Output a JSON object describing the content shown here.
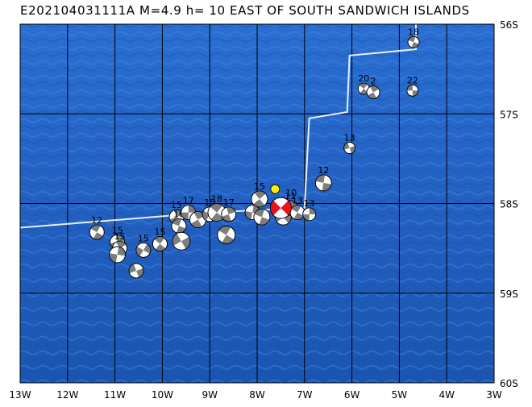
{
  "title": "E202104031111A  M=4.9  h= 10 EAST OF SOUTH SANDWICH ISLANDS",
  "colors": {
    "ocean_dark": "#1a55b0",
    "ocean_mid": "#2a6fd2",
    "ocean_light": "#3c86e4",
    "grid": "#000000",
    "track": "#e8eef5",
    "main_event": "#e8131b",
    "epicenter": "#ffee00",
    "beachball_dark": "#7d7d7d"
  },
  "map": {
    "lon_range": [
      -13,
      -3
    ],
    "lat_range": [
      -60,
      -56
    ],
    "x_ticks": [
      {
        "lon": -13,
        "label": "13W"
      },
      {
        "lon": -12,
        "label": "12W"
      },
      {
        "lon": -11,
        "label": "11W"
      },
      {
        "lon": -10,
        "label": "10W"
      },
      {
        "lon": -9,
        "label": "9W"
      },
      {
        "lon": -8,
        "label": "8W"
      },
      {
        "lon": -7,
        "label": "7W"
      },
      {
        "lon": -6,
        "label": "6W"
      },
      {
        "lon": -5,
        "label": "5W"
      },
      {
        "lon": -4,
        "label": "4W"
      },
      {
        "lon": -3,
        "label": "3W"
      }
    ],
    "y_ticks": [
      {
        "lat": -56,
        "label": "56S"
      },
      {
        "lat": -57,
        "label": "57S"
      },
      {
        "lat": -58,
        "label": "58S"
      },
      {
        "lat": -59,
        "label": "59S"
      },
      {
        "lat": -60,
        "label": "60S"
      }
    ]
  },
  "epicenter": {
    "lon": -7.62,
    "lat": -57.84
  },
  "main_event": {
    "lon": -7.5,
    "lat": -58.05,
    "depth": "10",
    "mech_rot": 135
  },
  "plate_boundary": [
    [
      -13.0,
      -58.27
    ],
    [
      -9.0,
      -58.1
    ],
    [
      -7.0,
      -58.05
    ],
    [
      -6.9,
      -57.05
    ],
    [
      -6.1,
      -56.98
    ],
    [
      -6.05,
      -56.35
    ],
    [
      -4.65,
      -56.28
    ],
    [
      -4.65,
      -55.98
    ]
  ],
  "events": [
    {
      "lon": -4.7,
      "lat": -56.2,
      "depth": "18",
      "size": 7,
      "rot": 20
    },
    {
      "lon": -5.75,
      "lat": -56.72,
      "depth": "20",
      "size": 7,
      "rot": 40
    },
    {
      "lon": -5.55,
      "lat": -56.76,
      "depth": "2",
      "size": 8,
      "rot": 60
    },
    {
      "lon": -4.72,
      "lat": -56.74,
      "depth": "22",
      "size": 7,
      "rot": 0
    },
    {
      "lon": -6.05,
      "lat": -57.38,
      "depth": "13",
      "size": 7,
      "rot": -20
    },
    {
      "lon": -6.6,
      "lat": -57.77,
      "depth": "12",
      "size": 10,
      "rot": 10
    },
    {
      "lon": -11.38,
      "lat": -58.32,
      "depth": "12",
      "size": 9,
      "rot": 30
    },
    {
      "lon": -10.95,
      "lat": -58.43,
      "depth": "15",
      "size": 9,
      "rot": 80
    },
    {
      "lon": -10.9,
      "lat": -58.5,
      "depth": "15",
      "size": 9,
      "rot": 60
    },
    {
      "lon": -10.95,
      "lat": -58.57,
      "depth": "",
      "size": 10,
      "rot": 100
    },
    {
      "lon": -10.4,
      "lat": -58.52,
      "depth": "15",
      "size": 9,
      "rot": 120
    },
    {
      "lon": -10.05,
      "lat": -58.45,
      "depth": "15",
      "size": 9,
      "rot": 40
    },
    {
      "lon": -10.55,
      "lat": -58.75,
      "depth": "",
      "size": 9,
      "rot": 160
    },
    {
      "lon": -9.7,
      "lat": -58.15,
      "depth": "15",
      "size": 9,
      "rot": 70
    },
    {
      "lon": -9.65,
      "lat": -58.25,
      "depth": "10",
      "size": 9,
      "rot": 20
    },
    {
      "lon": -9.45,
      "lat": -58.1,
      "depth": "17",
      "size": 9,
      "rot": 90
    },
    {
      "lon": -9.25,
      "lat": -58.18,
      "depth": "",
      "size": 10,
      "rot": 60
    },
    {
      "lon": -9.0,
      "lat": -58.12,
      "depth": "15",
      "size": 9,
      "rot": 120
    },
    {
      "lon": -8.85,
      "lat": -58.1,
      "depth": "18",
      "size": 11,
      "rot": 40
    },
    {
      "lon": -8.6,
      "lat": -58.12,
      "depth": "17",
      "size": 9,
      "rot": 70
    },
    {
      "lon": -9.6,
      "lat": -58.42,
      "depth": "",
      "size": 11,
      "rot": 150
    },
    {
      "lon": -8.65,
      "lat": -58.35,
      "depth": "",
      "size": 11,
      "rot": 30
    },
    {
      "lon": -7.95,
      "lat": -57.95,
      "depth": "15",
      "size": 10,
      "rot": 50
    },
    {
      "lon": -8.1,
      "lat": -58.1,
      "depth": "",
      "size": 9,
      "rot": 100
    },
    {
      "lon": -7.9,
      "lat": -58.15,
      "depth": "",
      "size": 10,
      "rot": 20
    },
    {
      "lon": -7.45,
      "lat": -58.15,
      "depth": "",
      "size": 10,
      "rot": 140
    },
    {
      "lon": -7.3,
      "lat": -58.05,
      "depth": "11",
      "size": 9,
      "rot": 60
    },
    {
      "lon": -7.15,
      "lat": -58.1,
      "depth": "13",
      "size": 9,
      "rot": 30
    },
    {
      "lon": -6.9,
      "lat": -58.12,
      "depth": "13",
      "size": 8,
      "rot": 90
    }
  ]
}
